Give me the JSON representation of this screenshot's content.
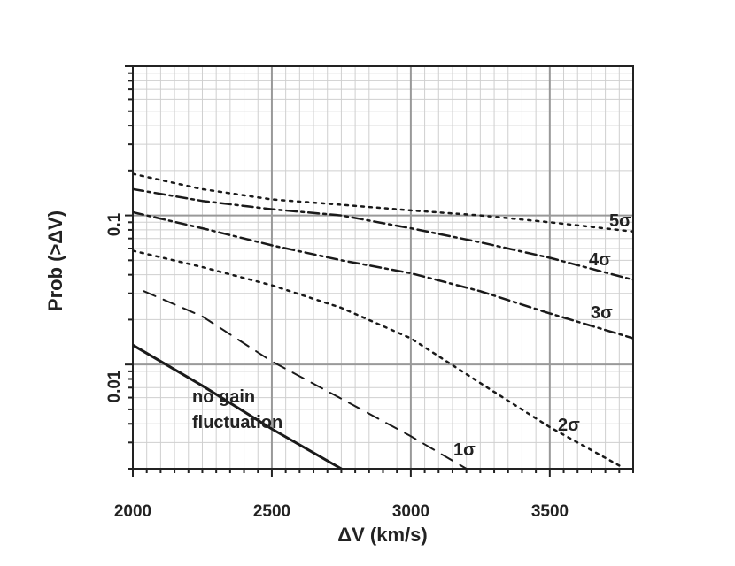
{
  "chart_data": {
    "type": "line",
    "xlabel": "ΔV (km/s)",
    "ylabel": "Prob (>ΔV)",
    "xlim": [
      2000,
      3800
    ],
    "ylim": [
      0.002,
      1
    ],
    "yscale": "log",
    "grid": true,
    "x_ticks": [
      2000,
      2500,
      3000,
      3500
    ],
    "y_ticks": [
      0.01,
      0.1
    ],
    "x_tick_labels": [
      "2000",
      "2500",
      "3000",
      "3500"
    ],
    "y_tick_labels": [
      "0.01",
      "0.1"
    ],
    "series": [
      {
        "name": "no gain fluctuation",
        "label_lines": [
          "no gain",
          "fluctuation"
        ],
        "style": "solid",
        "x": [
          2000,
          2250,
          2500,
          2750
        ],
        "y": [
          0.0135,
          0.0072,
          0.0037,
          0.002
        ]
      },
      {
        "name": "1σ",
        "style": "dashed",
        "x": [
          2040,
          2250,
          2500,
          2750,
          3000,
          3200
        ],
        "y": [
          0.031,
          0.021,
          0.0105,
          0.0059,
          0.0033,
          0.002
        ]
      },
      {
        "name": "2σ",
        "style": "dotted",
        "x": [
          2000,
          2250,
          2500,
          2750,
          3000,
          3250,
          3500,
          3750
        ],
        "y": [
          0.058,
          0.045,
          0.034,
          0.024,
          0.015,
          0.0075,
          0.0038,
          0.0021
        ]
      },
      {
        "name": "3σ",
        "style": "dash-dot",
        "x": [
          2000,
          2250,
          2500,
          2750,
          3000,
          3250,
          3500,
          3800
        ],
        "y": [
          0.105,
          0.082,
          0.063,
          0.05,
          0.041,
          0.031,
          0.022,
          0.015
        ]
      },
      {
        "name": "4σ",
        "style": "dash-dot",
        "x": [
          2000,
          2250,
          2500,
          2750,
          3000,
          3250,
          3500,
          3800
        ],
        "y": [
          0.15,
          0.125,
          0.11,
          0.1,
          0.082,
          0.066,
          0.052,
          0.037
        ]
      },
      {
        "name": "5σ",
        "style": "dotted",
        "x": [
          2000,
          2250,
          2500,
          2750,
          3000,
          3250,
          3500,
          3800
        ],
        "y": [
          0.19,
          0.15,
          0.128,
          0.118,
          0.108,
          0.1,
          0.09,
          0.078
        ]
      }
    ],
    "curve_labels": [
      "no gain",
      "fluctuation",
      "1σ",
      "2σ",
      "3σ",
      "4σ",
      "5σ"
    ],
    "colors": {
      "line": "#1a1a1a",
      "grid_major": "#999999",
      "grid_minor": "#cfcfcf",
      "axis": "#222222"
    }
  }
}
